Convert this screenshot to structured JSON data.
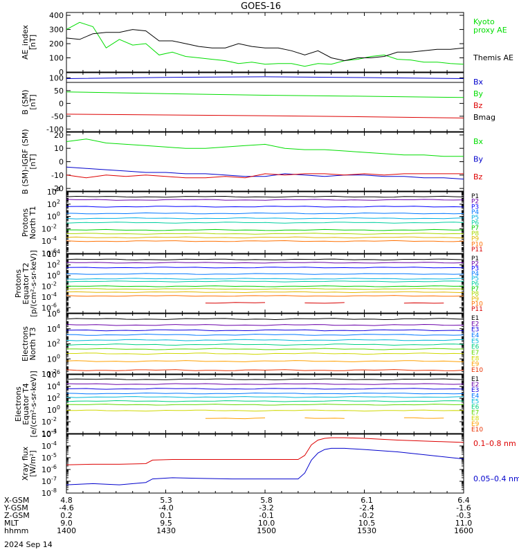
{
  "title": "GOES-16",
  "date_label": "2024 Sep 14",
  "colors": {
    "black": "#000000",
    "green": "#00dd00",
    "blue": "#0000cc",
    "red": "#dd0000",
    "P": [
      "#000000",
      "#6a00a8",
      "#0000ff",
      "#0077ff",
      "#00b0e0",
      "#00cfa0",
      "#00d000",
      "#a8d800",
      "#e0b800",
      "#ff7000",
      "#d80000"
    ],
    "E": [
      "#000000",
      "#6a00a8",
      "#1000e0",
      "#0077ff",
      "#00b8d8",
      "#00d080",
      "#60d800",
      "#d0d800",
      "#ffa000",
      "#e83000"
    ]
  },
  "ephemeris": {
    "row_labels": [
      "X-GSM",
      "Y-GSM",
      "Z-GSM",
      "MLT",
      "hhmm"
    ],
    "columns": [
      [
        "4.8",
        "-4.6",
        "0.2",
        "9.0",
        "1400"
      ],
      [
        "5.3",
        "-4.0",
        "0.1",
        "9.5",
        "1430"
      ],
      [
        "5.8",
        "-3.2",
        "-0.1",
        "10.0",
        "1500"
      ],
      [
        "6.1",
        "-2.4",
        "-0.2",
        "10.5",
        "1530"
      ],
      [
        "6.4",
        "-1.6",
        "-0.3",
        "11.0",
        "1600"
      ]
    ]
  },
  "chart_data": [
    {
      "type": "line",
      "id": "ae",
      "ylabel": [
        "AE_index",
        "[nT]"
      ],
      "ylim": [
        0,
        420
      ],
      "scale": "linear",
      "ticks": [
        "0",
        "100",
        "200",
        "300",
        "400"
      ],
      "x": [
        1400,
        1404,
        1408,
        1412,
        1416,
        1420,
        1424,
        1428,
        1432,
        1436,
        1440,
        1444,
        1448,
        1452,
        1456,
        1500,
        1504,
        1508,
        1512,
        1516,
        1520,
        1524,
        1528,
        1532,
        1536,
        1540,
        1544,
        1548,
        1552,
        1556,
        1600
      ],
      "series": [
        {
          "name": "Kyoto proxy AE",
          "label": [
            "Kyoto",
            "proxy AE"
          ],
          "color": "green",
          "values": [
            300,
            350,
            320,
            170,
            230,
            190,
            200,
            120,
            140,
            110,
            100,
            90,
            80,
            60,
            70,
            55,
            60,
            60,
            40,
            60,
            55,
            80,
            90,
            110,
            120,
            90,
            85,
            70,
            70,
            60,
            55
          ]
        },
        {
          "name": "Themis AE",
          "label": [
            "Themis AE"
          ],
          "color": "black",
          "values": [
            240,
            230,
            270,
            280,
            280,
            300,
            290,
            220,
            220,
            200,
            180,
            170,
            170,
            200,
            180,
            170,
            170,
            150,
            120,
            150,
            100,
            80,
            100,
            100,
            110,
            140,
            140,
            150,
            160,
            160,
            170
          ]
        }
      ]
    },
    {
      "type": "line",
      "id": "bsm",
      "ylabel": [
        "B (SM)",
        "[nT]"
      ],
      "ylim": [
        -110,
        120
      ],
      "scale": "linear",
      "ticks": [
        "-100",
        "-50",
        "0",
        "50",
        "100"
      ],
      "x": [
        1400,
        1430,
        1500,
        1530,
        1600
      ],
      "series": [
        {
          "name": "Bx",
          "label": [
            "Bx"
          ],
          "color": "blue",
          "values": [
            97,
            102,
            104,
            101,
            97
          ]
        },
        {
          "name": "By",
          "label": [
            "By"
          ],
          "color": "green",
          "values": [
            45,
            38,
            32,
            28,
            23
          ]
        },
        {
          "name": "Bz",
          "label": [
            "Bz"
          ],
          "color": "red",
          "values": [
            -42,
            -45,
            -48,
            -52,
            -57
          ]
        },
        {
          "name": "Bmag",
          "label": [
            "Bmag"
          ],
          "color": "black",
          "values": [
            82,
            82,
            82,
            82,
            82
          ]
        }
      ]
    },
    {
      "type": "line",
      "id": "bigrf",
      "ylabel": [
        "B (SM)-IGRF (SM)",
        "[nT]"
      ],
      "ylim": [
        -22,
        22
      ],
      "scale": "linear",
      "ticks": [
        "-20",
        "-10",
        "0",
        "10",
        "20"
      ],
      "x": [
        1400,
        1406,
        1412,
        1418,
        1424,
        1430,
        1436,
        1442,
        1448,
        1454,
        1500,
        1506,
        1512,
        1518,
        1524,
        1530,
        1536,
        1542,
        1548,
        1554,
        1600
      ],
      "series": [
        {
          "name": "Bx",
          "label": [
            "Bx"
          ],
          "color": "green",
          "values": [
            15,
            17,
            14,
            13,
            12,
            11,
            10,
            10,
            11,
            12,
            13,
            10,
            9,
            9,
            8,
            7,
            6,
            5,
            5,
            4,
            4
          ]
        },
        {
          "name": "By",
          "label": [
            "By"
          ],
          "color": "blue",
          "values": [
            -4,
            -5,
            -6,
            -7,
            -8,
            -8,
            -9,
            -9,
            -10,
            -11,
            -11,
            -9,
            -10,
            -11,
            -10,
            -10,
            -11,
            -11,
            -12,
            -12,
            -13
          ]
        },
        {
          "name": "Bz",
          "label": [
            "Bz"
          ],
          "color": "red",
          "values": [
            -10,
            -12,
            -10,
            -11,
            -10,
            -11,
            -12,
            -12,
            -11,
            -12,
            -9,
            -10,
            -9,
            -9,
            -10,
            -9,
            -10,
            -9,
            -9,
            -9,
            -9
          ]
        }
      ]
    },
    {
      "type": "line",
      "id": "protons_t1",
      "ylabel": [
        "Protons",
        "North T1"
      ],
      "ylim": [
        -6,
        4
      ],
      "scale": "log",
      "ticks": [
        "10^4",
        "10^2",
        "10^0",
        "10^-2",
        "10^-4",
        "10^-6"
      ],
      "x": [
        1400,
        1600
      ],
      "series": [
        {
          "name": "P1",
          "label": [
            "P1"
          ],
          "log_value": 3.2
        },
        {
          "name": "P2",
          "label": [
            "P2"
          ],
          "log_value": 2.7
        },
        {
          "name": "P3",
          "label": [
            "P3"
          ],
          "log_value": 1.6
        },
        {
          "name": "P4",
          "label": [
            "P4"
          ],
          "log_value": 0.5
        },
        {
          "name": "P5",
          "label": [
            "P5"
          ],
          "log_value": -0.3
        },
        {
          "name": "P6",
          "label": [
            "P6"
          ],
          "log_value": -1.0
        },
        {
          "name": "P7",
          "label": [
            "P7"
          ],
          "log_value": -2.2
        },
        {
          "name": "P8",
          "label": [
            "P8"
          ],
          "log_value": -2.8
        },
        {
          "name": "P9",
          "label": [
            "P9"
          ],
          "log_value": -3.4
        },
        {
          "name": "P10",
          "label": [
            "P10"
          ],
          "log_value": -4.0
        },
        {
          "name": "P11",
          "label": [
            "P11"
          ],
          "log_value": -99
        }
      ]
    },
    {
      "type": "line",
      "id": "protons_t2",
      "ylabel": [
        "Protons",
        "Equator T2",
        "[p/(cm²-s-sr-keV)]"
      ],
      "ylim": [
        -7,
        4
      ],
      "scale": "log",
      "ticks": [
        "10^4",
        "10^2",
        "10^0",
        "10^-2",
        "10^-4",
        "10^-6"
      ],
      "x": [
        1400,
        1600
      ],
      "series": [
        {
          "name": "P1",
          "label": [
            "P1"
          ],
          "log_value": 3.0
        },
        {
          "name": "P2",
          "label": [
            "P2"
          ],
          "log_value": 2.4
        },
        {
          "name": "P3",
          "label": [
            "P3"
          ],
          "log_value": 1.5
        },
        {
          "name": "P4",
          "label": [
            "P4"
          ],
          "log_value": 0.3
        },
        {
          "name": "P5",
          "label": [
            "P5"
          ],
          "log_value": -0.6
        },
        {
          "name": "P6",
          "label": [
            "P6"
          ],
          "log_value": -1.1
        },
        {
          "name": "P7",
          "label": [
            "P7"
          ],
          "log_value": -2.0
        },
        {
          "name": "P8",
          "label": [
            "P8"
          ],
          "log_value": -2.5
        },
        {
          "name": "P9",
          "label": [
            "P9"
          ],
          "log_value": -3.1
        },
        {
          "name": "P10",
          "label": [
            "P10"
          ],
          "log_value": -3.8
        },
        {
          "name": "P11",
          "label": [
            "P11"
          ],
          "log_value": -5.1,
          "partial": true
        }
      ]
    },
    {
      "type": "line",
      "id": "electrons_t3",
      "ylabel": [
        "Electrons",
        "North T3"
      ],
      "ylim": [
        -2,
        6
      ],
      "scale": "log",
      "ticks": [
        "10^6",
        "10^4",
        "10^2",
        "10^0",
        "10^-2"
      ],
      "x": [
        1400,
        1600
      ],
      "series": [
        {
          "name": "E1",
          "label": [
            "E1"
          ],
          "log_value": 5.3
        },
        {
          "name": "E2",
          "label": [
            "E2"
          ],
          "log_value": 4.5
        },
        {
          "name": "E3",
          "label": [
            "E3"
          ],
          "log_value": 3.8
        },
        {
          "name": "E4",
          "label": [
            "E4"
          ],
          "log_value": 3.2
        },
        {
          "name": "E5",
          "label": [
            "E5"
          ],
          "log_value": 2.5
        },
        {
          "name": "E6",
          "label": [
            "E6"
          ],
          "log_value": 1.9
        },
        {
          "name": "E7",
          "label": [
            "E7"
          ],
          "log_value": 1.3
        },
        {
          "name": "E8",
          "label": [
            "E8"
          ],
          "log_value": 0.7
        },
        {
          "name": "E9",
          "label": [
            "E9"
          ],
          "log_value": -0.3
        },
        {
          "name": "E10",
          "label": [
            "E10"
          ],
          "log_value": -1.5
        }
      ]
    },
    {
      "type": "line",
      "id": "electrons_t4",
      "ylabel": [
        "Electrons",
        "Equator T4",
        "[e/(cm²-s-sr-keV)]"
      ],
      "ylim": [
        -4,
        6
      ],
      "scale": "log",
      "ticks": [
        "10^6",
        "10^4",
        "10^2",
        "10^0",
        "10^-2",
        "10^-4"
      ],
      "x": [
        1400,
        1600
      ],
      "series": [
        {
          "name": "E1",
          "label": [
            "E1"
          ],
          "log_value": 5.2
        },
        {
          "name": "E2",
          "label": [
            "E2"
          ],
          "log_value": 4.4
        },
        {
          "name": "E3",
          "label": [
            "E3"
          ],
          "log_value": 3.6
        },
        {
          "name": "E4",
          "label": [
            "E4"
          ],
          "log_value": 2.8
        },
        {
          "name": "E5",
          "label": [
            "E5"
          ],
          "log_value": 2.2
        },
        {
          "name": "E6",
          "label": [
            "E6"
          ],
          "log_value": 1.5
        },
        {
          "name": "E7",
          "label": [
            "E7"
          ],
          "log_value": 0.9
        },
        {
          "name": "E8",
          "label": [
            "E8"
          ],
          "log_value": -0.1
        },
        {
          "name": "E9",
          "label": [
            "E9"
          ],
          "log_value": -1.4,
          "partial": true
        },
        {
          "name": "E10",
          "label": [
            "E10"
          ],
          "log_value": -99
        }
      ]
    },
    {
      "type": "line",
      "id": "xray",
      "ylabel": [
        "Xray flux",
        "[W/m²]"
      ],
      "ylim": [
        -8,
        -3
      ],
      "scale": "log",
      "ticks": [
        "10^-3",
        "10^-4",
        "10^-5",
        "10^-6",
        "10^-7",
        "10^-8"
      ],
      "x": [
        1400,
        1408,
        1416,
        1424,
        1426,
        1432,
        1440,
        1450,
        1500,
        1510,
        1512,
        1514,
        1516,
        1518,
        1520,
        1524,
        1530,
        1540,
        1550,
        1600
      ],
      "series": [
        {
          "name": "0.1-0.8 nm",
          "label": [
            "0.1–0.8 nm"
          ],
          "color": "red",
          "values": [
            -5.6,
            -5.55,
            -5.55,
            -5.5,
            -5.2,
            -5.15,
            -5.15,
            -5.15,
            -5.15,
            -5.15,
            -4.8,
            -3.9,
            -3.5,
            -3.35,
            -3.3,
            -3.3,
            -3.35,
            -3.5,
            -3.6,
            -3.7
          ]
        },
        {
          "name": "0.05-0.4 nm",
          "label": [
            "0.05–0.4 nm"
          ],
          "color": "blue",
          "values": [
            -7.3,
            -7.2,
            -7.3,
            -7.1,
            -6.8,
            -6.7,
            -6.75,
            -6.8,
            -6.8,
            -6.8,
            -6.3,
            -5.2,
            -4.6,
            -4.3,
            -4.2,
            -4.2,
            -4.3,
            -4.5,
            -4.8,
            -5.1
          ]
        }
      ]
    }
  ]
}
